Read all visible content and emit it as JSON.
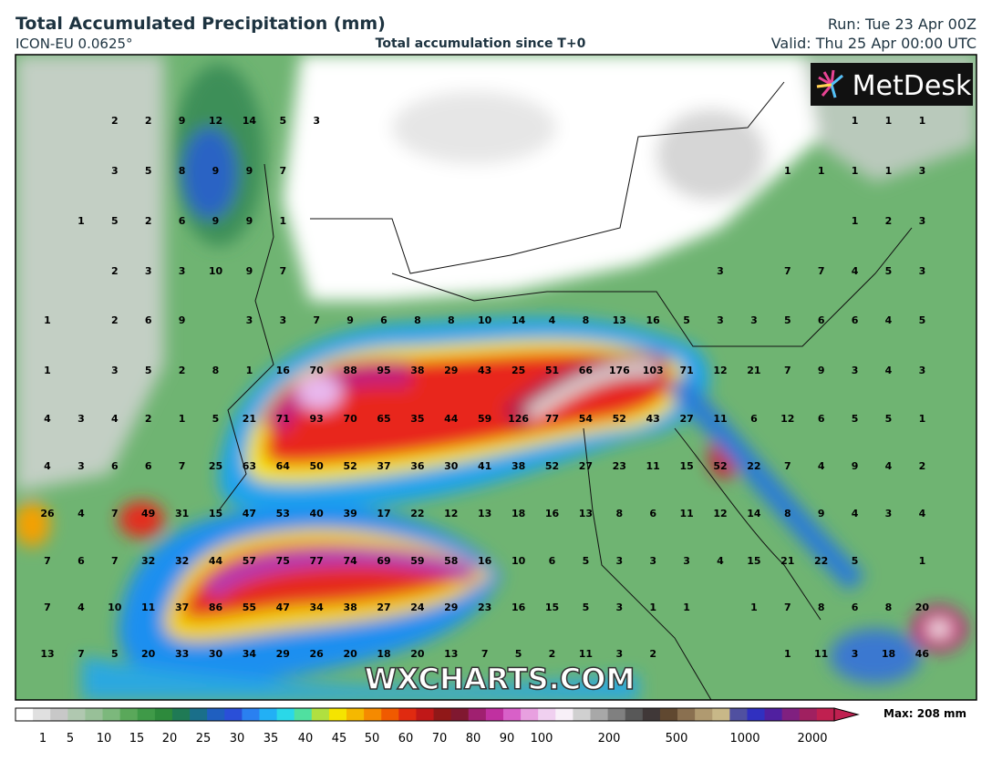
{
  "header": {
    "title": "Total Accumulated Precipitation (mm)",
    "model": "ICON-EU 0.0625°",
    "subtitle": "Total accumulation since T+0",
    "run": "Run: Tue 23 Apr 00Z",
    "valid": "Valid: Thu 25 Apr 00:00 UTC"
  },
  "logo": "MetDesk",
  "watermark": "WXCHARTS.COM",
  "grid_labels": [
    [
      null,
      null,
      2,
      2,
      9,
      12,
      14,
      5,
      3,
      null,
      null,
      null,
      null,
      null,
      null,
      null,
      null,
      null,
      null,
      null,
      null,
      null,
      null,
      null,
      1,
      1,
      1
    ],
    [
      null,
      null,
      3,
      5,
      8,
      9,
      9,
      7,
      null,
      null,
      null,
      null,
      null,
      null,
      null,
      null,
      null,
      null,
      null,
      null,
      null,
      null,
      1,
      1,
      1,
      1,
      3
    ],
    [
      null,
      1,
      5,
      2,
      6,
      9,
      9,
      1,
      null,
      null,
      null,
      null,
      null,
      null,
      null,
      null,
      null,
      null,
      null,
      null,
      null,
      null,
      null,
      null,
      1,
      2,
      3
    ],
    [
      null,
      null,
      2,
      3,
      3,
      10,
      9,
      7,
      null,
      null,
      null,
      null,
      null,
      null,
      null,
      null,
      null,
      null,
      null,
      null,
      3,
      null,
      7,
      7,
      4,
      5,
      3
    ],
    [
      1,
      null,
      2,
      6,
      9,
      null,
      3,
      3,
      7,
      9,
      6,
      8,
      8,
      10,
      14,
      4,
      8,
      13,
      16,
      5,
      3,
      3,
      5,
      6,
      6,
      4,
      5
    ],
    [
      1,
      null,
      3,
      5,
      2,
      8,
      1,
      16,
      70,
      88,
      95,
      38,
      29,
      43,
      25,
      51,
      66,
      176,
      103,
      71,
      12,
      21,
      7,
      9,
      3,
      4,
      3
    ],
    [
      4,
      3,
      4,
      2,
      1,
      5,
      21,
      71,
      93,
      70,
      65,
      35,
      44,
      59,
      126,
      77,
      54,
      52,
      43,
      27,
      11,
      6,
      12,
      6,
      5,
      5,
      1
    ],
    [
      4,
      3,
      6,
      6,
      7,
      25,
      63,
      64,
      50,
      52,
      37,
      36,
      30,
      41,
      38,
      52,
      27,
      23,
      11,
      15,
      52,
      22,
      7,
      4,
      9,
      4,
      2
    ],
    [
      26,
      4,
      7,
      49,
      31,
      15,
      47,
      53,
      40,
      39,
      17,
      22,
      12,
      13,
      18,
      16,
      13,
      8,
      6,
      11,
      12,
      14,
      8,
      9,
      4,
      3,
      4
    ],
    [
      7,
      6,
      7,
      32,
      32,
      44,
      57,
      75,
      77,
      74,
      69,
      59,
      58,
      16,
      10,
      6,
      5,
      3,
      3,
      3,
      4,
      15,
      21,
      22,
      5,
      null,
      1
    ],
    [
      7,
      4,
      10,
      11,
      37,
      86,
      55,
      47,
      34,
      38,
      27,
      24,
      29,
      23,
      16,
      15,
      5,
      3,
      1,
      1,
      null,
      1,
      7,
      8,
      6,
      8,
      20
    ],
    [
      13,
      7,
      5,
      20,
      33,
      30,
      34,
      29,
      26,
      20,
      18,
      20,
      13,
      7,
      5,
      2,
      11,
      3,
      2,
      null,
      null,
      null,
      1,
      11,
      3,
      18,
      46
    ]
  ],
  "colorbar": {
    "ticks": [
      1,
      5,
      10,
      15,
      20,
      25,
      30,
      35,
      40,
      45,
      50,
      60,
      70,
      80,
      90,
      100,
      200,
      500,
      1000,
      2000
    ],
    "max_label": "Max: 208 mm"
  }
}
